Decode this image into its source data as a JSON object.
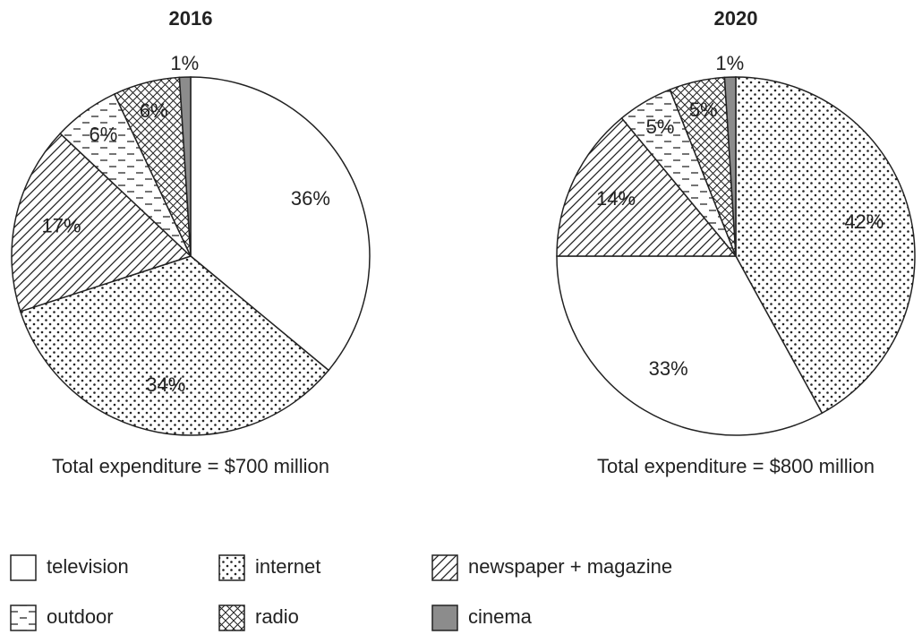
{
  "chart_data": [
    {
      "type": "pie",
      "title": "2016",
      "subtitle": "Total expenditure = $700 million",
      "categories": [
        "television",
        "internet",
        "newspaper + magazine",
        "outdoor",
        "radio",
        "cinema"
      ],
      "values": [
        36,
        34,
        17,
        6,
        6,
        1
      ],
      "value_labels": [
        "36%",
        "34%",
        "17%",
        "6%",
        "6%",
        "1%"
      ],
      "fills": [
        "#ffffff",
        "dots",
        "diagonal",
        "dashes",
        "crosshatch",
        "#8c8c8c"
      ]
    },
    {
      "type": "pie",
      "title": "2020",
      "subtitle": "Total expenditure = $800 million",
      "categories": [
        "internet",
        "television",
        "newspaper + magazine",
        "outdoor",
        "radio",
        "cinema"
      ],
      "values": [
        42,
        33,
        14,
        5,
        5,
        1
      ],
      "value_labels": [
        "42%",
        "33%",
        "14%",
        "5%",
        "5%",
        "1%"
      ],
      "fills": [
        "dots",
        "#ffffff",
        "diagonal",
        "dashes",
        "crosshatch",
        "#8c8c8c"
      ]
    }
  ]
}
